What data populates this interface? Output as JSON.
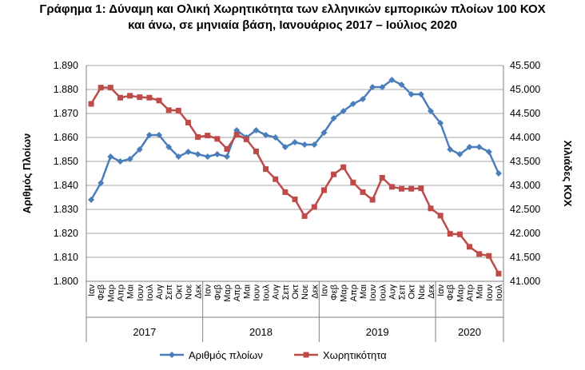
{
  "title": {
    "line1": "Γράφημα 1: Δύναμη και Ολική Χωρητικότητα των ελληνικών εμπορικών πλοίων 100 ΚΟΧ",
    "line2": "και άνω, σε μηνιαία βάση, Ιανουάριος 2017 – Ιούλιος 2020"
  },
  "chart_data": {
    "type": "line",
    "ylabel": "Αριθμός Πλοίων",
    "y2label": "Χιλιάδες ΚΟΧ",
    "ylim": [
      1800,
      1890
    ],
    "y2lim": [
      41000,
      45500
    ],
    "y_ticks": [
      "1.800",
      "1.810",
      "1.820",
      "1.830",
      "1.840",
      "1.850",
      "1.860",
      "1.870",
      "1.880",
      "1.890"
    ],
    "y2_ticks": [
      "41.000",
      "41.500",
      "42.000",
      "42.500",
      "43.000",
      "43.500",
      "44.000",
      "44.500",
      "45.000",
      "45.500"
    ],
    "grid": true,
    "legend": "bottom",
    "months": [
      "Ιαν",
      "Φεβ",
      "Μαρ",
      "Απρ",
      "Μαι",
      "Ιουν",
      "Ιουλ",
      "Αυγ",
      "Σεπ",
      "Οκτ",
      "Νοε",
      "Δεκ",
      "Ιαν",
      "Φεβ",
      "Μαρ",
      "Απρ",
      "Μαι",
      "Ιουν",
      "Ιουλ",
      "Αυγ",
      "Σεπ",
      "Οκτ",
      "Νοε",
      "Δεκ",
      "Ιαν",
      "Φεβ",
      "Μαρ",
      "Απρ",
      "Μαι",
      "Ιουν",
      "Ιουλ",
      "Αυγ",
      "Σεπ",
      "Οκτ",
      "Νοε",
      "Δεκ",
      "Ιαν",
      "Φεβ",
      "Μαρ",
      "Απρ",
      "Μαι",
      "Ιουν",
      "Ιουλ"
    ],
    "years": [
      {
        "label": "2017",
        "count": 12
      },
      {
        "label": "2018",
        "count": 12
      },
      {
        "label": "2019",
        "count": 12
      },
      {
        "label": "2020",
        "count": 7
      }
    ],
    "series": [
      {
        "name": "Αριθμός πλοίων",
        "axis": "left",
        "color": "#4a7ebb",
        "marker": "diamond",
        "values": [
          1834,
          1841,
          1852,
          1850,
          1851,
          1855,
          1861,
          1861,
          1856,
          1852,
          1854,
          1853,
          1852,
          1853,
          1852,
          1863,
          1860,
          1863,
          1861,
          1860,
          1856,
          1858,
          1857,
          1857,
          1862,
          1868,
          1871,
          1874,
          1876,
          1881,
          1881,
          1884,
          1882,
          1878,
          1878,
          1871,
          1866,
          1855,
          1853,
          1856,
          1856,
          1854,
          1845
        ]
      },
      {
        "name": "Χωρητικότητα",
        "axis": "right",
        "color": "#be4b48",
        "marker": "square",
        "values": [
          44700,
          45040,
          45040,
          44830,
          44870,
          44840,
          44830,
          44770,
          44570,
          44560,
          44310,
          44010,
          44040,
          43970,
          43760,
          44060,
          43960,
          43710,
          43340,
          43130,
          42860,
          42710,
          42360,
          42550,
          42900,
          43230,
          43380,
          43060,
          42860,
          42700,
          43160,
          42970,
          42930,
          42930,
          42940,
          42520,
          42370,
          41990,
          41980,
          41720,
          41570,
          41530,
          41160
        ]
      }
    ]
  }
}
